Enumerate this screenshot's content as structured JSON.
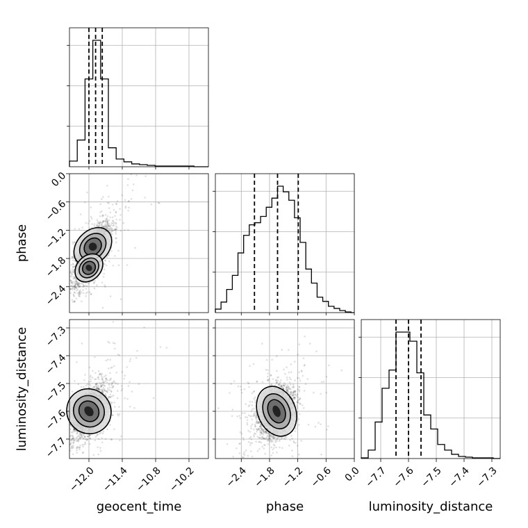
{
  "chart_data": {
    "type": "corner",
    "grid": true,
    "parameters": [
      {
        "name": "geocent_time",
        "label": "geocent_time",
        "range": [
          -12.35,
          -9.85
        ],
        "ticks": [
          -12.0,
          -11.4,
          -10.8,
          -10.2
        ],
        "tick_labels": [
          "−12.0",
          "−11.4",
          "−10.8",
          "−10.2"
        ]
      },
      {
        "name": "phase",
        "label": "phase",
        "range": [
          -2.95,
          0.0
        ],
        "ticks": [
          -2.4,
          -1.8,
          -1.2,
          -0.6,
          0.0
        ],
        "tick_labels": [
          "−2.4",
          "−1.8",
          "−1.2",
          "−0.6",
          "0.0"
        ]
      },
      {
        "name": "luminosity_distance",
        "label": "luminosity_distance",
        "range": [
          -7.77,
          -7.27
        ],
        "ticks": [
          -7.7,
          -7.6,
          -7.5,
          -7.4,
          -7.3
        ],
        "tick_labels": [
          "−7.7",
          "−7.6",
          "−7.5",
          "−7.4",
          "−7.3"
        ]
      }
    ],
    "histograms": [
      {
        "parameter": "geocent_time",
        "bin_edges": [
          -12.35,
          -12.21,
          -12.07,
          -11.93,
          -11.79,
          -11.65,
          -11.51,
          -11.37,
          -11.23,
          -11.09,
          -10.95,
          -10.81,
          -10.67,
          -10.53,
          -10.39,
          -10.25,
          -10.11,
          -9.97
        ],
        "counts": [
          8,
          38,
          125,
          180,
          125,
          27,
          11,
          7,
          4,
          3,
          2,
          1,
          1,
          1,
          1,
          1,
          0
        ],
        "quantiles": [
          -12.0,
          -11.88,
          -11.76
        ]
      },
      {
        "parameter": "phase",
        "bin_edges": [
          -2.95,
          -2.83,
          -2.71,
          -2.59,
          -2.47,
          -2.35,
          -2.23,
          -2.11,
          -1.99,
          -1.87,
          -1.75,
          -1.63,
          -1.51,
          -1.39,
          -1.27,
          -1.15,
          -1.03,
          -0.91,
          -0.79,
          -0.67,
          -0.55,
          -0.43,
          -0.31,
          -0.19,
          -0.07
        ],
        "counts": [
          5,
          15,
          33,
          53,
          85,
          110,
          125,
          128,
          137,
          150,
          163,
          180,
          172,
          160,
          135,
          100,
          62,
          42,
          22,
          16,
          9,
          6,
          3,
          1
        ],
        "quantiles": [
          -2.12,
          -1.63,
          -1.19
        ]
      },
      {
        "parameter": "luminosity_distance",
        "bin_edges": [
          -7.77,
          -7.745,
          -7.72,
          -7.695,
          -7.67,
          -7.645,
          -7.62,
          -7.595,
          -7.57,
          -7.545,
          -7.52,
          -7.495,
          -7.47,
          -7.445,
          -7.42,
          -7.395,
          -7.37,
          -7.345,
          -7.32,
          -7.295
        ],
        "counts": [
          1,
          12,
          52,
          100,
          126,
          180,
          180,
          167,
          122,
          62,
          42,
          20,
          12,
          6,
          3,
          2,
          1,
          1,
          1
        ],
        "quantiles": [
          -7.645,
          -7.6,
          -7.555
        ]
      }
    ],
    "density_2d": [
      {
        "x": "geocent_time",
        "y": "phase",
        "peaks": [
          {
            "x": -11.93,
            "y": -1.55,
            "weight": 0.7
          },
          {
            "x": -12.0,
            "y": -2.0,
            "weight": 0.3
          }
        ],
        "correlation": 0.75
      },
      {
        "x": "geocent_time",
        "y": "luminosity_distance",
        "peaks": [
          {
            "x": -12.0,
            "y": -7.6,
            "weight": 1.0
          }
        ],
        "correlation": 0.55
      },
      {
        "x": "phase",
        "y": "luminosity_distance",
        "peaks": [
          {
            "x": -1.65,
            "y": -7.6,
            "weight": 1.0
          }
        ],
        "correlation": 0.3
      }
    ]
  }
}
